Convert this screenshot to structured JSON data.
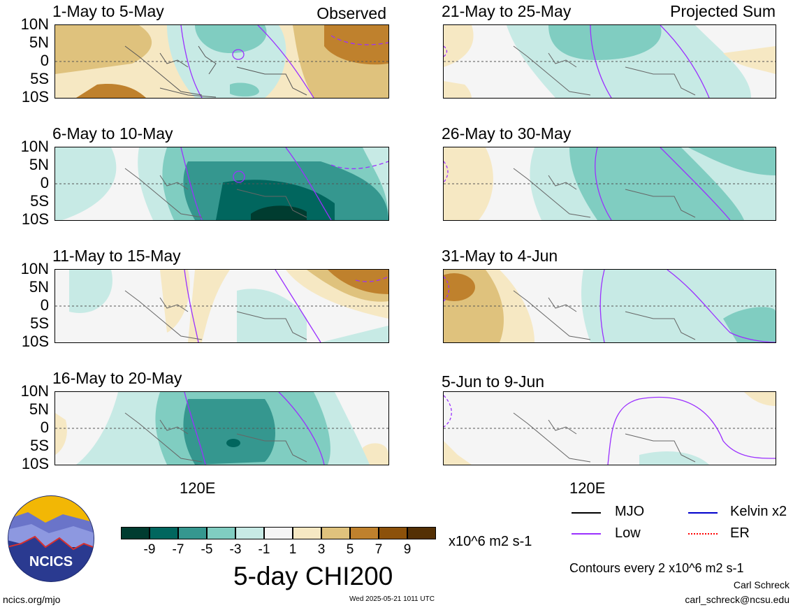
{
  "panels": {
    "left": [
      {
        "title": "1-May to 5-May",
        "tag": "Observed"
      },
      {
        "title": "6-May to 10-May",
        "tag": ""
      },
      {
        "title": "11-May to 15-May",
        "tag": ""
      },
      {
        "title": "16-May to 20-May",
        "tag": ""
      }
    ],
    "right": [
      {
        "title": "21-May to 25-May",
        "tag": "Projected Sum"
      },
      {
        "title": "26-May to 30-May",
        "tag": ""
      },
      {
        "title": "31-May to 4-Jun",
        "tag": ""
      },
      {
        "title": "5-Jun to 9-Jun",
        "tag": ""
      }
    ]
  },
  "y_axis_labels": [
    "10N",
    "5N",
    "0",
    "5S",
    "10S"
  ],
  "x_axis_label": "120E",
  "colorbar": {
    "ticks": [
      "-9",
      "-7",
      "-5",
      "-3",
      "-1",
      "1",
      "3",
      "5",
      "7",
      "9"
    ],
    "colors": [
      "#003c30",
      "#01665e",
      "#35978f",
      "#80cdc1",
      "#c7eae5",
      "#f5f5f5",
      "#f6e8c3",
      "#dfc27d",
      "#bf812d",
      "#8c510a",
      "#543005"
    ],
    "units": "x10^6 m2 s-1"
  },
  "title": "5-day CHI200",
  "legend": [
    {
      "label": "MJO",
      "color": "#000000"
    },
    {
      "label": "Kelvin x2",
      "color": "#0000cc"
    },
    {
      "label": "Low",
      "color": "#9b30ff"
    },
    {
      "label": "ER",
      "color": "#ff0000"
    }
  ],
  "contour_note": "Contours every 2 x10^6 m2 s-1",
  "author": "Carl Schreck",
  "email": "carl_schreck@ncsu.edu",
  "site": "ncics.org/mjo",
  "timestamp": "Wed 2025-05-21 1011 UTC",
  "logo_text": "NCICS"
}
